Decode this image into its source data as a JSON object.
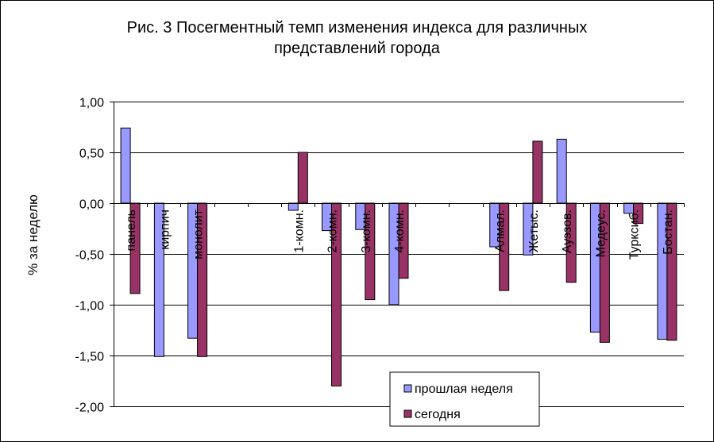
{
  "chart_data": {
    "type": "bar",
    "title": "Рис. 3 Посегментный темп изменения индекса для различных представлений города",
    "title_lines": [
      "Рис. 3 Посегментный темп изменения индекса для различных",
      "представлений города"
    ],
    "xlabel": "",
    "ylabel": "% за неделю",
    "ylim": [
      -2.0,
      1.0
    ],
    "yticks": [
      1.0,
      0.5,
      0.0,
      -0.5,
      -1.0,
      -1.5,
      -2.0
    ],
    "ytick_labels": [
      "1,00",
      "0,50",
      "0,00",
      "-0,50",
      "-1,00",
      "-1,50",
      "-2,00"
    ],
    "grid": true,
    "legend_position": "bottom-right",
    "categories": [
      "панель",
      "кирпич",
      "монолит",
      "",
      "",
      "1-комн.",
      "2-комн.",
      "3-комн.",
      "4-комн.",
      "",
      "",
      "Алмал.",
      "Жетыс.",
      "Ауэзов.",
      "Медеус.",
      "Турксиб.",
      "Бостан."
    ],
    "series": [
      {
        "name": "прошлая неделя",
        "color": "#9999ff",
        "values": [
          0.74,
          -1.51,
          -1.33,
          null,
          null,
          -0.07,
          -0.27,
          -0.26,
          -1.0,
          null,
          null,
          -0.43,
          -0.51,
          0.63,
          -1.27,
          -0.1,
          -1.34
        ]
      },
      {
        "name": "сегодня",
        "color": "#993366",
        "values": [
          -0.89,
          0.0,
          -1.51,
          null,
          null,
          0.5,
          -1.8,
          -0.95,
          -0.74,
          null,
          null,
          -0.86,
          0.61,
          -0.78,
          -1.37,
          -0.2,
          -1.35
        ]
      }
    ]
  }
}
